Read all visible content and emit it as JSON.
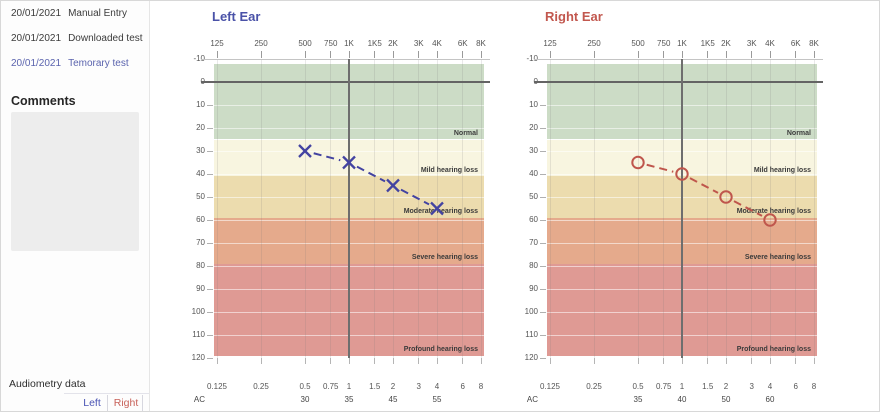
{
  "window": {
    "background": "#ffffff",
    "border_color": "#d8d8d8"
  },
  "sidebar": {
    "tests": [
      {
        "date": "20/01/2021",
        "name": "Manual Entry",
        "selected": false
      },
      {
        "date": "20/01/2021",
        "name": "Downloaded test",
        "selected": false
      },
      {
        "date": "20/01/2021",
        "name": "Temorary test",
        "selected": true
      }
    ],
    "selected_color": "#5b64ae",
    "comments_label": "Comments",
    "comments_value": "",
    "audiometry_data_label": "Audiometry data",
    "tabs": [
      {
        "label": "Left",
        "color": "#4a54b4"
      },
      {
        "label": "Right",
        "color": "#c8625a"
      }
    ]
  },
  "chart_data": [
    {
      "type": "line",
      "title": "Left Ear",
      "title_color": "#4a52a8",
      "series_color": "#4343a1",
      "marker": "x",
      "ylim": [
        -10,
        120
      ],
      "y_step": 10,
      "grid": true,
      "freq_axis": [
        {
          "hz": 125,
          "top": "125",
          "bottom": "0.125"
        },
        {
          "hz": 250,
          "top": "250",
          "bottom": "0.25"
        },
        {
          "hz": 500,
          "top": "500",
          "bottom": "0.5"
        },
        {
          "hz": 750,
          "top": "750",
          "bottom": "0.75"
        },
        {
          "hz": 1000,
          "top": "1K",
          "bottom": "1"
        },
        {
          "hz": 1500,
          "top": "1K5",
          "bottom": "1.5"
        },
        {
          "hz": 2000,
          "top": "2K",
          "bottom": "2"
        },
        {
          "hz": 3000,
          "top": "3K",
          "bottom": "3"
        },
        {
          "hz": 4000,
          "top": "4K",
          "bottom": "4"
        },
        {
          "hz": 6000,
          "top": "6K",
          "bottom": "6"
        },
        {
          "hz": 8000,
          "top": "8K",
          "bottom": "8"
        }
      ],
      "zones": [
        {
          "label": "Normal",
          "from": -8,
          "to": 25,
          "color": "#ccdcc6"
        },
        {
          "label": "Mild hearing loss",
          "from": 25,
          "to": 41,
          "color": "#f8f5e0"
        },
        {
          "label": "Moderate hearing loss",
          "from": 41,
          "to": 59,
          "color": "#ecdcae"
        },
        {
          "label": "Severe hearing loss",
          "from": 59,
          "to": 79,
          "color": "#e5aa8c"
        },
        {
          "label": "Profound hearing loss",
          "from": 79,
          "to": 119,
          "color": "#df9a94"
        }
      ],
      "points": [
        {
          "hz": 500,
          "db": 30
        },
        {
          "hz": 1000,
          "db": 35
        },
        {
          "hz": 2000,
          "db": 45
        },
        {
          "hz": 4000,
          "db": 55
        }
      ],
      "ac_row": {
        "label": "AC",
        "values": [
          {
            "hz": 500,
            "value": "30"
          },
          {
            "hz": 1000,
            "value": "35"
          },
          {
            "hz": 2000,
            "value": "45"
          },
          {
            "hz": 4000,
            "value": "55"
          }
        ]
      }
    },
    {
      "type": "line",
      "title": "Right Ear",
      "title_color": "#c2584f",
      "series_color": "#bf564c",
      "marker": "o",
      "ylim": [
        -10,
        120
      ],
      "y_step": 10,
      "grid": true,
      "freq_axis": [
        {
          "hz": 125,
          "top": "125",
          "bottom": "0.125"
        },
        {
          "hz": 250,
          "top": "250",
          "bottom": "0.25"
        },
        {
          "hz": 500,
          "top": "500",
          "bottom": "0.5"
        },
        {
          "hz": 750,
          "top": "750",
          "bottom": "0.75"
        },
        {
          "hz": 1000,
          "top": "1K",
          "bottom": "1"
        },
        {
          "hz": 1500,
          "top": "1K5",
          "bottom": "1.5"
        },
        {
          "hz": 2000,
          "top": "2K",
          "bottom": "2"
        },
        {
          "hz": 3000,
          "top": "3K",
          "bottom": "3"
        },
        {
          "hz": 4000,
          "top": "4K",
          "bottom": "4"
        },
        {
          "hz": 6000,
          "top": "6K",
          "bottom": "6"
        },
        {
          "hz": 8000,
          "top": "8K",
          "bottom": "8"
        }
      ],
      "zones": [
        {
          "label": "Normal",
          "from": -8,
          "to": 25,
          "color": "#ccdcc6"
        },
        {
          "label": "Mild hearing loss",
          "from": 25,
          "to": 41,
          "color": "#f8f5e0"
        },
        {
          "label": "Moderate hearing loss",
          "from": 41,
          "to": 59,
          "color": "#ecdcae"
        },
        {
          "label": "Severe hearing loss",
          "from": 59,
          "to": 79,
          "color": "#e5aa8c"
        },
        {
          "label": "Profound hearing loss",
          "from": 79,
          "to": 119,
          "color": "#df9a94"
        }
      ],
      "points": [
        {
          "hz": 500,
          "db": 35
        },
        {
          "hz": 1000,
          "db": 40
        },
        {
          "hz": 2000,
          "db": 50
        },
        {
          "hz": 4000,
          "db": 60
        }
      ],
      "ac_row": {
        "label": "AC",
        "values": [
          {
            "hz": 500,
            "value": "35"
          },
          {
            "hz": 1000,
            "value": "40"
          },
          {
            "hz": 2000,
            "value": "50"
          },
          {
            "hz": 4000,
            "value": "60"
          }
        ]
      }
    }
  ]
}
